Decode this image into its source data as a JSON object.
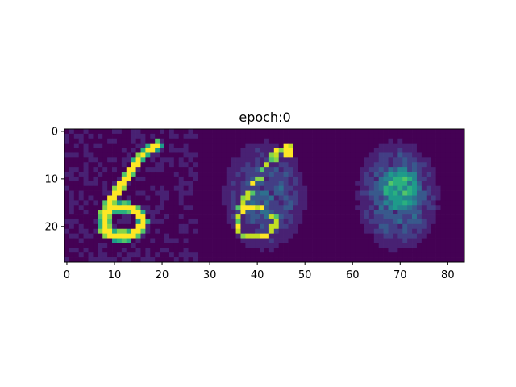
{
  "figure": {
    "background": "#ffffff"
  },
  "chart_data": {
    "type": "heatmap",
    "title": "epoch:0",
    "xlabel": "",
    "ylabel": "",
    "image_shape": [
      28,
      84
    ],
    "xlim": [
      -0.5,
      83.5
    ],
    "ylim": [
      27.5,
      -0.5
    ],
    "y_inverted": true,
    "grid": false,
    "legend": "none",
    "colormap": "viridis",
    "xticks": [
      0,
      10,
      20,
      30,
      40,
      50,
      60,
      70,
      80
    ],
    "xtick_labels": [
      "0",
      "10",
      "20",
      "30",
      "40",
      "50",
      "60",
      "70",
      "80"
    ],
    "yticks": [
      0,
      10,
      20
    ],
    "ytick_labels": [
      "0",
      "10",
      "20"
    ],
    "panels": [
      {
        "col_range": [
          0,
          27
        ],
        "content": "handwritten digit 6 (input)"
      },
      {
        "col_range": [
          28,
          55
        ],
        "content": "noisy reconstruction of stroke"
      },
      {
        "col_range": [
          56,
          83
        ],
        "content": "diffuse noise blob"
      }
    ],
    "palette": [
      "#440154",
      "#482173",
      "#433e85",
      "#38598c",
      "#2d708e",
      "#25858e",
      "#1e9b8a",
      "#2ab07f",
      "#52c569",
      "#86d549",
      "#c2df23",
      "#fde725"
    ]
  }
}
